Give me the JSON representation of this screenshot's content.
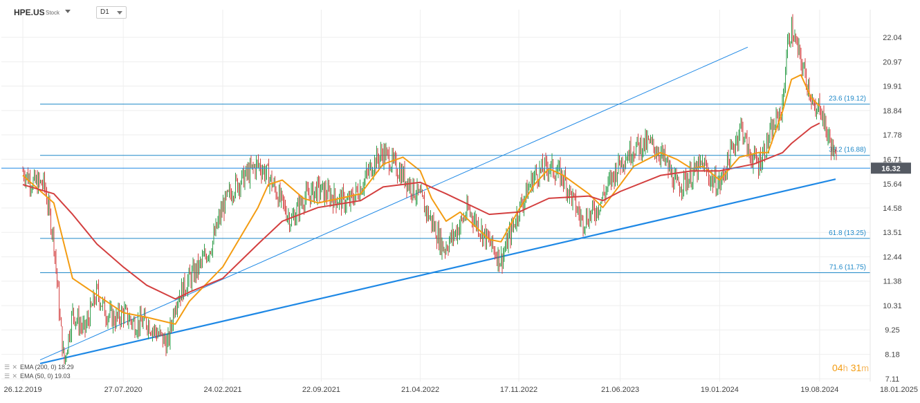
{
  "header": {
    "symbol": "HPE.US",
    "symbol_type": "Stock",
    "timeframe": "D1"
  },
  "legend": [
    {
      "label": "EMA (200, 0) 18.29",
      "color": "#d33f3f"
    },
    {
      "label": "EMA (50, 0) 19.03",
      "color": "#f39c12"
    }
  ],
  "countdown": {
    "hours": "04",
    "hours_unit": "h",
    "minutes": "31",
    "minutes_unit": "m"
  },
  "chart_data": {
    "type": "candlestick",
    "price_axis": {
      "ticks": [
        "22.04",
        "20.97",
        "19.91",
        "18.84",
        "17.78",
        "16.71",
        "15.64",
        "14.58",
        "13.51",
        "12.44",
        "11.38",
        "10.31",
        "9.25",
        "8.18",
        "7.11"
      ],
      "ylim": [
        7.11,
        22.04
      ]
    },
    "time_axis": {
      "ticks": [
        "26.12.2019",
        "27.07.2020",
        "24.02.2021",
        "22.09.2021",
        "21.04.2022",
        "17.11.2022",
        "21.06.2023",
        "19.01.2024",
        "19.08.2024",
        "18.01.2025"
      ]
    },
    "current_price": {
      "label": "16.32",
      "value": 16.32,
      "color": "#1e88e5"
    },
    "fibonacci_levels": [
      {
        "label": "23.6 (19.12)",
        "value": 19.12
      },
      {
        "label": "38.2 (16.88)",
        "value": 16.88
      },
      {
        "label": "61.8 (13.25)",
        "value": 13.25
      },
      {
        "label": "71.6 (11.75)",
        "value": 11.75
      }
    ],
    "trendlines": [
      {
        "name": "channel-upper",
        "from": [
          "26.12.2019",
          7.6
        ],
        "to": [
          "19.08.2024",
          23.0
        ]
      },
      {
        "name": "support",
        "from": [
          "26.12.2019",
          7.6
        ],
        "to": [
          "18.01.2025",
          16.4
        ]
      }
    ],
    "price_series": [
      {
        "date": "26.12.2019",
        "value": 16.2
      },
      {
        "date": "15.01.2020",
        "value": 15.7
      },
      {
        "date": "10.02.2020",
        "value": 15.6
      },
      {
        "date": "01.03.2020",
        "value": 13.2
      },
      {
        "date": "15.03.2020",
        "value": 9.5
      },
      {
        "date": "23.03.2020",
        "value": 7.8
      },
      {
        "date": "10.04.2020",
        "value": 10.0
      },
      {
        "date": "05.05.2020",
        "value": 9.2
      },
      {
        "date": "01.06.2020",
        "value": 10.9
      },
      {
        "date": "20.06.2020",
        "value": 10.0
      },
      {
        "date": "10.07.2020",
        "value": 9.7
      },
      {
        "date": "27.07.2020",
        "value": 10.0
      },
      {
        "date": "20.08.2020",
        "value": 9.5
      },
      {
        "date": "15.09.2020",
        "value": 9.6
      },
      {
        "date": "30.10.2020",
        "value": 8.6
      },
      {
        "date": "15.11.2020",
        "value": 10.5
      },
      {
        "date": "15.12.2020",
        "value": 11.5
      },
      {
        "date": "05.01.2021",
        "value": 12.0
      },
      {
        "date": "01.02.2021",
        "value": 13.0
      },
      {
        "date": "24.02.2021",
        "value": 14.6
      },
      {
        "date": "20.03.2021",
        "value": 15.5
      },
      {
        "date": "15.04.2021",
        "value": 16.0
      },
      {
        "date": "10.05.2021",
        "value": 16.5
      },
      {
        "date": "01.06.2021",
        "value": 16.0
      },
      {
        "date": "25.06.2021",
        "value": 15.0
      },
      {
        "date": "20.07.2021",
        "value": 14.0
      },
      {
        "date": "15.08.2021",
        "value": 15.0
      },
      {
        "date": "15.09.2021",
        "value": 15.4
      },
      {
        "date": "22.10.2021",
        "value": 15.0
      },
      {
        "date": "20.11.2021",
        "value": 14.8
      },
      {
        "date": "15.12.2021",
        "value": 15.5
      },
      {
        "date": "10.01.2022",
        "value": 16.5
      },
      {
        "date": "01.02.2022",
        "value": 17.0
      },
      {
        "date": "15.03.2022",
        "value": 16.0
      },
      {
        "date": "21.04.2022",
        "value": 15.0
      },
      {
        "date": "15.05.2022",
        "value": 14.0
      },
      {
        "date": "10.06.2022",
        "value": 12.8
      },
      {
        "date": "05.07.2022",
        "value": 13.5
      },
      {
        "date": "01.08.2022",
        "value": 14.5
      },
      {
        "date": "01.09.2022",
        "value": 13.5
      },
      {
        "date": "10.10.2022",
        "value": 12.3
      },
      {
        "date": "17.11.2022",
        "value": 14.5
      },
      {
        "date": "20.12.2022",
        "value": 16.0
      },
      {
        "date": "20.01.2023",
        "value": 16.4
      },
      {
        "date": "20.02.2023",
        "value": 15.9
      },
      {
        "date": "15.03.2023",
        "value": 14.8
      },
      {
        "date": "01.04.2023",
        "value": 14.0
      },
      {
        "date": "01.05.2023",
        "value": 14.5
      },
      {
        "date": "21.06.2023",
        "value": 16.6
      },
      {
        "date": "20.07.2023",
        "value": 17.2
      },
      {
        "date": "20.08.2023",
        "value": 17.4
      },
      {
        "date": "15.09.2023",
        "value": 17.0
      },
      {
        "date": "20.10.2023",
        "value": 15.5
      },
      {
        "date": "20.11.2023",
        "value": 16.0
      },
      {
        "date": "15.12.2023",
        "value": 16.5
      },
      {
        "date": "01.01.2024",
        "value": 15.8
      },
      {
        "date": "19.01.2024",
        "value": 15.6
      },
      {
        "date": "05.03.2024",
        "value": 18.2
      },
      {
        "date": "20.03.2024",
        "value": 17.0
      },
      {
        "date": "10.04.2024",
        "value": 16.5
      },
      {
        "date": "01.05.2024",
        "value": 17.5
      },
      {
        "date": "01.06.2024",
        "value": 19.0
      },
      {
        "date": "10.06.2024",
        "value": 21.5
      },
      {
        "date": "20.06.2024",
        "value": 22.4
      },
      {
        "date": "10.07.2024",
        "value": 21.0
      },
      {
        "date": "01.08.2024",
        "value": 19.5
      },
      {
        "date": "10.08.2024",
        "value": 18.5
      },
      {
        "date": "19.08.2024",
        "value": 19.2
      },
      {
        "date": "01.09.2024",
        "value": 18.0
      },
      {
        "date": "15.09.2024",
        "value": 17.2
      },
      {
        "date": "25.09.2024",
        "value": 16.32
      }
    ],
    "ema_series": [
      {
        "name": "EMA (50, 0)",
        "color": "#f39c12",
        "points": [
          {
            "date": "26.12.2019",
            "value": 16.0
          },
          {
            "date": "01.03.2020",
            "value": 14.8
          },
          {
            "date": "10.04.2020",
            "value": 11.5
          },
          {
            "date": "27.07.2020",
            "value": 10.0
          },
          {
            "date": "15.09.2020",
            "value": 9.8
          },
          {
            "date": "15.11.2020",
            "value": 9.5
          },
          {
            "date": "15.12.2020",
            "value": 10.5
          },
          {
            "date": "24.02.2021",
            "value": 12.0
          },
          {
            "date": "10.05.2021",
            "value": 14.6
          },
          {
            "date": "01.06.2021",
            "value": 15.6
          },
          {
            "date": "01.07.2021",
            "value": 15.8
          },
          {
            "date": "15.08.2021",
            "value": 15.0
          },
          {
            "date": "15.09.2021",
            "value": 14.8
          },
          {
            "date": "01.11.2021",
            "value": 15.0
          },
          {
            "date": "15.12.2021",
            "value": 15.2
          },
          {
            "date": "01.02.2022",
            "value": 16.5
          },
          {
            "date": "15.03.2022",
            "value": 16.8
          },
          {
            "date": "21.04.2022",
            "value": 16.2
          },
          {
            "date": "15.05.2022",
            "value": 15.0
          },
          {
            "date": "15.06.2022",
            "value": 14.0
          },
          {
            "date": "15.07.2022",
            "value": 14.4
          },
          {
            "date": "15.09.2022",
            "value": 13.2
          },
          {
            "date": "10.10.2022",
            "value": 13.1
          },
          {
            "date": "17.11.2022",
            "value": 14.5
          },
          {
            "date": "20.12.2022",
            "value": 15.6
          },
          {
            "date": "20.01.2023",
            "value": 16.3
          },
          {
            "date": "20.02.2023",
            "value": 16.0
          },
          {
            "date": "15.04.2023",
            "value": 15.2
          },
          {
            "date": "15.05.2023",
            "value": 14.6
          },
          {
            "date": "21.06.2023",
            "value": 15.6
          },
          {
            "date": "20.07.2023",
            "value": 16.4
          },
          {
            "date": "15.09.2023",
            "value": 17.0
          },
          {
            "date": "20.10.2023",
            "value": 16.7
          },
          {
            "date": "20.11.2023",
            "value": 16.3
          },
          {
            "date": "15.12.2023",
            "value": 16.4
          },
          {
            "date": "19.01.2024",
            "value": 15.8
          },
          {
            "date": "01.03.2024",
            "value": 16.8
          },
          {
            "date": "10.04.2024",
            "value": 17.0
          },
          {
            "date": "01.05.2024",
            "value": 17.0
          },
          {
            "date": "01.06.2024",
            "value": 18.8
          },
          {
            "date": "20.06.2024",
            "value": 20.2
          },
          {
            "date": "10.07.2024",
            "value": 20.4
          },
          {
            "date": "01.08.2024",
            "value": 19.4
          },
          {
            "date": "19.08.2024",
            "value": 19.03
          }
        ]
      },
      {
        "name": "EMA (200, 0)",
        "color": "#d33f3f",
        "points": [
          {
            "date": "26.12.2019",
            "value": 15.6
          },
          {
            "date": "01.03.2020",
            "value": 15.2
          },
          {
            "date": "10.04.2020",
            "value": 14.3
          },
          {
            "date": "01.06.2020",
            "value": 13.0
          },
          {
            "date": "27.07.2020",
            "value": 12.0
          },
          {
            "date": "15.09.2020",
            "value": 11.2
          },
          {
            "date": "15.11.2020",
            "value": 10.6
          },
          {
            "date": "15.12.2020",
            "value": 10.9
          },
          {
            "date": "24.02.2021",
            "value": 11.5
          },
          {
            "date": "10.05.2021",
            "value": 13.0
          },
          {
            "date": "01.07.2021",
            "value": 14.0
          },
          {
            "date": "15.09.2021",
            "value": 14.6
          },
          {
            "date": "15.12.2021",
            "value": 14.9
          },
          {
            "date": "01.02.2022",
            "value": 15.5
          },
          {
            "date": "21.04.2022",
            "value": 15.7
          },
          {
            "date": "15.06.2022",
            "value": 15.2
          },
          {
            "date": "15.09.2022",
            "value": 14.3
          },
          {
            "date": "17.11.2022",
            "value": 14.4
          },
          {
            "date": "20.01.2023",
            "value": 15.0
          },
          {
            "date": "15.04.2023",
            "value": 15.1
          },
          {
            "date": "15.05.2023",
            "value": 14.9
          },
          {
            "date": "21.06.2023",
            "value": 15.3
          },
          {
            "date": "15.09.2023",
            "value": 16.0
          },
          {
            "date": "20.11.2023",
            "value": 16.2
          },
          {
            "date": "19.01.2024",
            "value": 16.2
          },
          {
            "date": "01.04.2024",
            "value": 16.5
          },
          {
            "date": "01.06.2024",
            "value": 17.0
          },
          {
            "date": "20.06.2024",
            "value": 17.4
          },
          {
            "date": "01.08.2024",
            "value": 18.1
          },
          {
            "date": "19.08.2024",
            "value": 18.29
          }
        ]
      }
    ]
  }
}
